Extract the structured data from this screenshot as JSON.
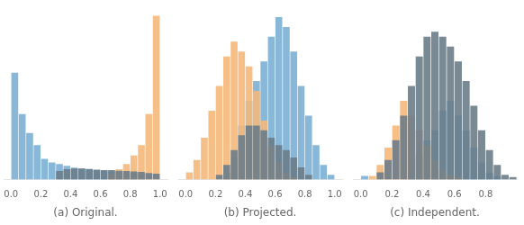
{
  "chart_data": [
    {
      "type": "histogram",
      "x_label": "(a) Original.",
      "bins": [
        0,
        0.05,
        0.1,
        0.15,
        0.2,
        0.25,
        0.3,
        0.35,
        0.4,
        0.45,
        0.5,
        0.55,
        0.6,
        0.65,
        0.7,
        0.75,
        0.8,
        0.85,
        0.9,
        0.95,
        1
      ],
      "series": [
        {
          "color": "#7bafd4",
          "values": [
            0.62,
            0.38,
            0.27,
            0.2,
            0.12,
            0.1,
            0.09,
            0.08,
            0.07,
            0.065,
            0.06,
            0.055,
            0.05,
            0.05,
            0.045,
            0.04,
            0.04,
            0.035,
            0.0,
            0.0
          ]
        },
        {
          "color": "#f5b87a",
          "values": [
            0.0,
            0.0,
            0.0,
            0.0,
            0.0,
            0.0,
            0.0,
            0.0,
            0.0,
            0.0,
            0.0,
            0.0,
            0.0,
            0.035,
            0.06,
            0.09,
            0.14,
            0.2,
            0.38,
            0.95
          ]
        },
        {
          "color": "#6b7d8a",
          "values": [
            0.0,
            0.0,
            0.0,
            0.0,
            0.0,
            0.0,
            0.05,
            0.06,
            0.065,
            0.065,
            0.062,
            0.058,
            0.055,
            0.055,
            0.052,
            0.05,
            0.048,
            0.045,
            0.038,
            0.035
          ]
        }
      ],
      "xlim": [
        -0.05,
        1.05
      ],
      "xticks": [
        {
          "value": 0,
          "label": "0.0"
        },
        0.2,
        0.4,
        0.6,
        0.8,
        {
          "value": 1,
          "label": "1.0"
        }
      ],
      "ylim": [
        0,
        1
      ],
      "grid": false,
      "tick_labels": "x"
    },
    {
      "type": "histogram",
      "x_label": "(b) Projected.",
      "bins": [
        0,
        0.05,
        0.1,
        0.15,
        0.2,
        0.25,
        0.3,
        0.35,
        0.4,
        0.45,
        0.5,
        0.55,
        0.6,
        0.65,
        0.7,
        0.75,
        0.8,
        0.85,
        0.9,
        0.95,
        1
      ],
      "series": [
        {
          "color": "#7bafd4",
          "values": [
            0.0,
            0.0,
            0.0,
            0.0,
            0.0,
            0.03,
            0.09,
            0.22,
            0.32,
            0.4,
            0.48,
            0.58,
            0.66,
            0.62,
            0.52,
            0.38,
            0.26,
            0.14,
            0.06,
            0.02
          ]
        },
        {
          "color": "#f5b87a",
          "values": [
            0.03,
            0.08,
            0.17,
            0.28,
            0.38,
            0.5,
            0.56,
            0.52,
            0.46,
            0.36,
            0.24,
            0.14,
            0.07,
            0.03,
            0.01,
            0.0,
            0.0,
            0.0,
            0.0,
            0.0
          ]
        },
        {
          "color": "#6b7d8a",
          "values": [
            0.0,
            0.0,
            0.0,
            0.0,
            0.02,
            0.06,
            0.12,
            0.18,
            0.22,
            0.22,
            0.2,
            0.17,
            0.14,
            0.12,
            0.09,
            0.05,
            0.02,
            0.0,
            0.0,
            0.0
          ]
        }
      ],
      "xlim": [
        -0.05,
        1.05
      ],
      "xticks": [
        {
          "value": 0,
          "label": "0.0"
        },
        0.2,
        0.4,
        0.6,
        0.8,
        {
          "value": 1,
          "label": "1.0"
        }
      ],
      "ylim": [
        0,
        0.7
      ],
      "grid": false,
      "tick_labels": "x"
    },
    {
      "type": "histogram",
      "x_label": "(c) Independent.",
      "bins": [
        0,
        0.05,
        0.1,
        0.15,
        0.2,
        0.25,
        0.3,
        0.35,
        0.4,
        0.45,
        0.5,
        0.55,
        0.6,
        0.65,
        0.7,
        0.75,
        0.8,
        0.85,
        0.9,
        0.95,
        1
      ],
      "series": [
        {
          "color": "#7bafd4",
          "values": [
            0.015,
            0.0,
            0.0,
            0.0,
            0.0,
            0.0,
            0.04,
            0.1,
            0.16,
            0.2,
            0.28,
            0.32,
            0.26,
            0.2,
            0.13,
            0.07,
            0.03,
            0.015,
            0.0,
            0.0
          ]
        },
        {
          "color": "#f5b87a",
          "values": [
            0.0,
            0.015,
            0.06,
            0.13,
            0.22,
            0.32,
            0.26,
            0.2,
            0.14,
            0.08,
            0.04,
            0.02,
            0.01,
            0.0,
            0.0,
            0.0,
            0.0,
            0.0,
            0.0,
            0.0
          ]
        },
        {
          "color": "#6b7d8a",
          "values": [
            0.0,
            0.0,
            0.03,
            0.08,
            0.16,
            0.26,
            0.38,
            0.5,
            0.58,
            0.6,
            0.58,
            0.54,
            0.48,
            0.4,
            0.3,
            0.2,
            0.12,
            0.06,
            0.02,
            0.01
          ]
        }
      ],
      "xlim": [
        -0.05,
        1.0
      ],
      "xticks": [
        {
          "value": 0,
          "label": "0.0"
        },
        0.2,
        0.4,
        0.6,
        0.8
      ],
      "ylim": [
        0,
        0.7
      ],
      "grid": false,
      "tick_labels": "x"
    }
  ]
}
